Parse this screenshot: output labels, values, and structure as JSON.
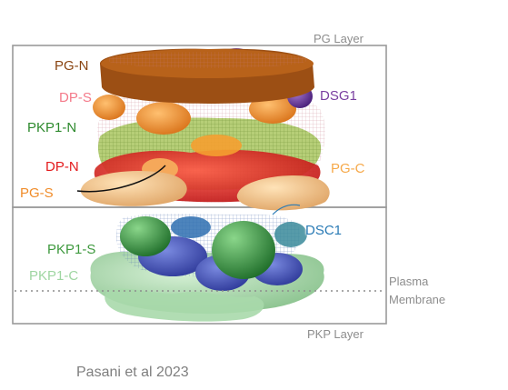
{
  "layers": {
    "pg_layer": "PG Layer",
    "pkp_layer": "PKP Layer"
  },
  "labels": {
    "pg_n": "PG-N",
    "dp_s": "DP-S",
    "pkp1_n": "PKP1-N",
    "dp_n": "DP-N",
    "pg_s": "PG-S",
    "dsg1": "DSG1",
    "pg_c": "PG-C",
    "dsc1": "DSC1",
    "pkp1_s": "PKP1-S",
    "pkp1_c": "PKP1-C"
  },
  "membrane": {
    "line1": "Plasma",
    "line2": "Membrane"
  },
  "credit": "Pasani et al 2023",
  "colors": {
    "pg_n": "#8a4512",
    "dp_s": "#f47a8a",
    "pkp1_n": "#2e8a2e",
    "dp_n": "#e31a1c",
    "pg_s": "#f08c2a",
    "dsg1": "#7a3fa0",
    "pg_c": "#f6a94a",
    "dsc1": "#2a7bb5",
    "pkp1_s": "#3f9a3f",
    "pkp1_c": "#9fd6a2",
    "layer_box": "#9a9a9a"
  }
}
